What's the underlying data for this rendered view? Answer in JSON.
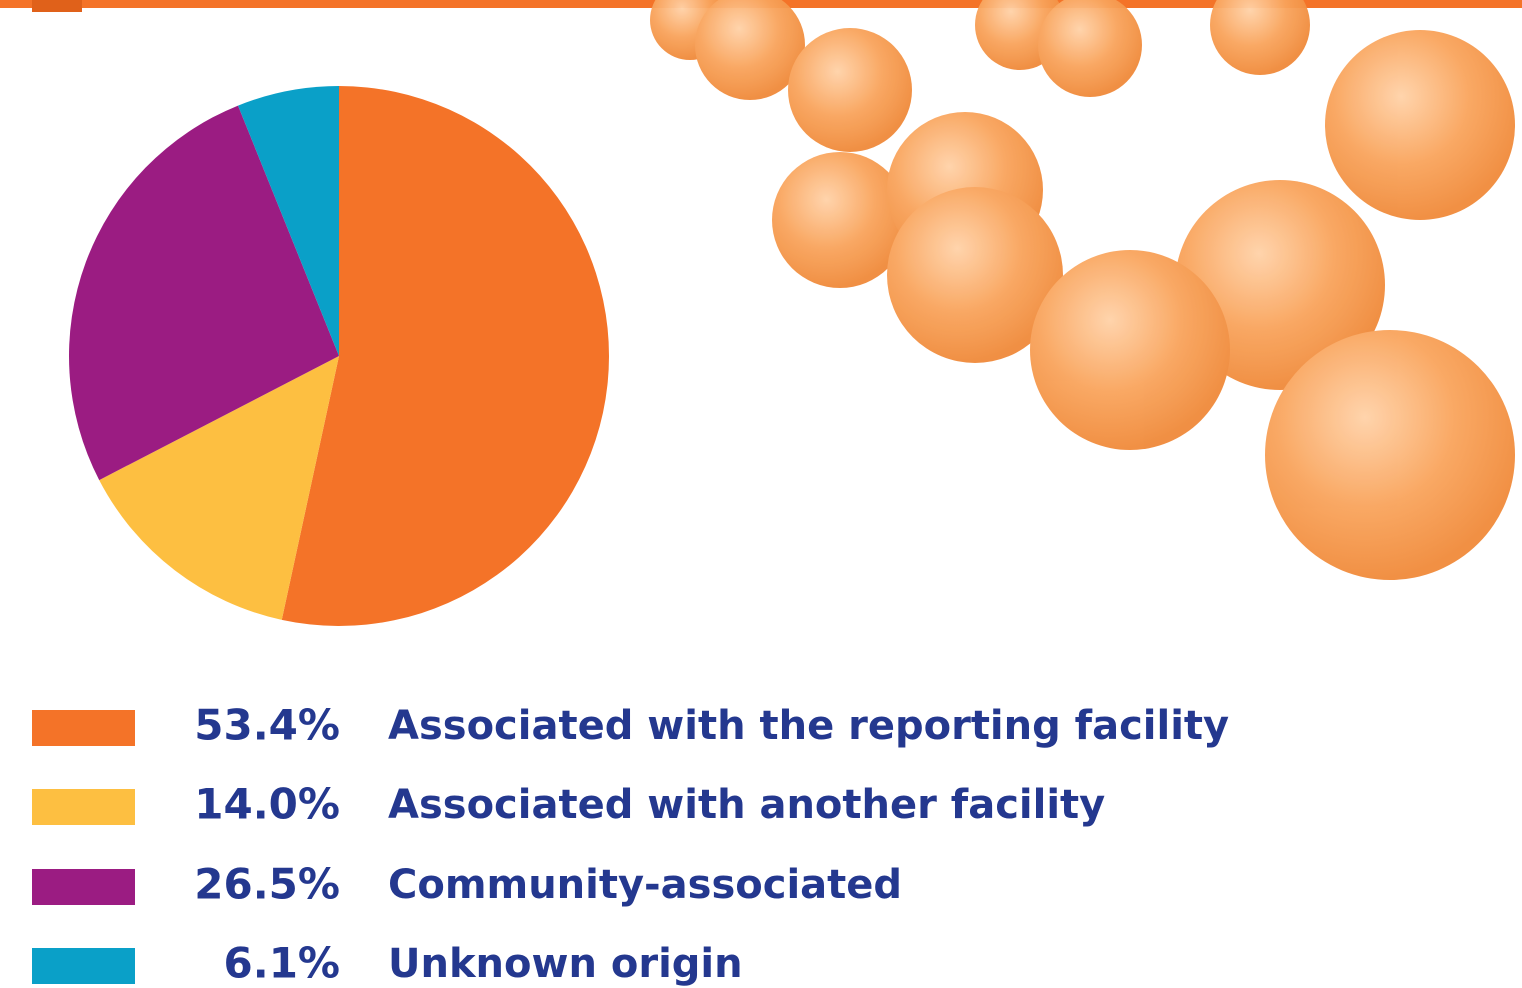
{
  "chart_data": {
    "type": "pie",
    "categories": [
      "Associated with the reporting facility",
      "Associated with another facility",
      "Community-associated",
      "Unknown origin"
    ],
    "values": [
      53.4,
      14.0,
      26.5,
      6.1
    ],
    "value_labels": [
      "53.4%",
      "14.0%",
      "26.5%",
      "6.1%"
    ],
    "colors": [
      "#f47328",
      "#fdbf41",
      "#9b1c82",
      "#0aa0c8"
    ]
  }
}
